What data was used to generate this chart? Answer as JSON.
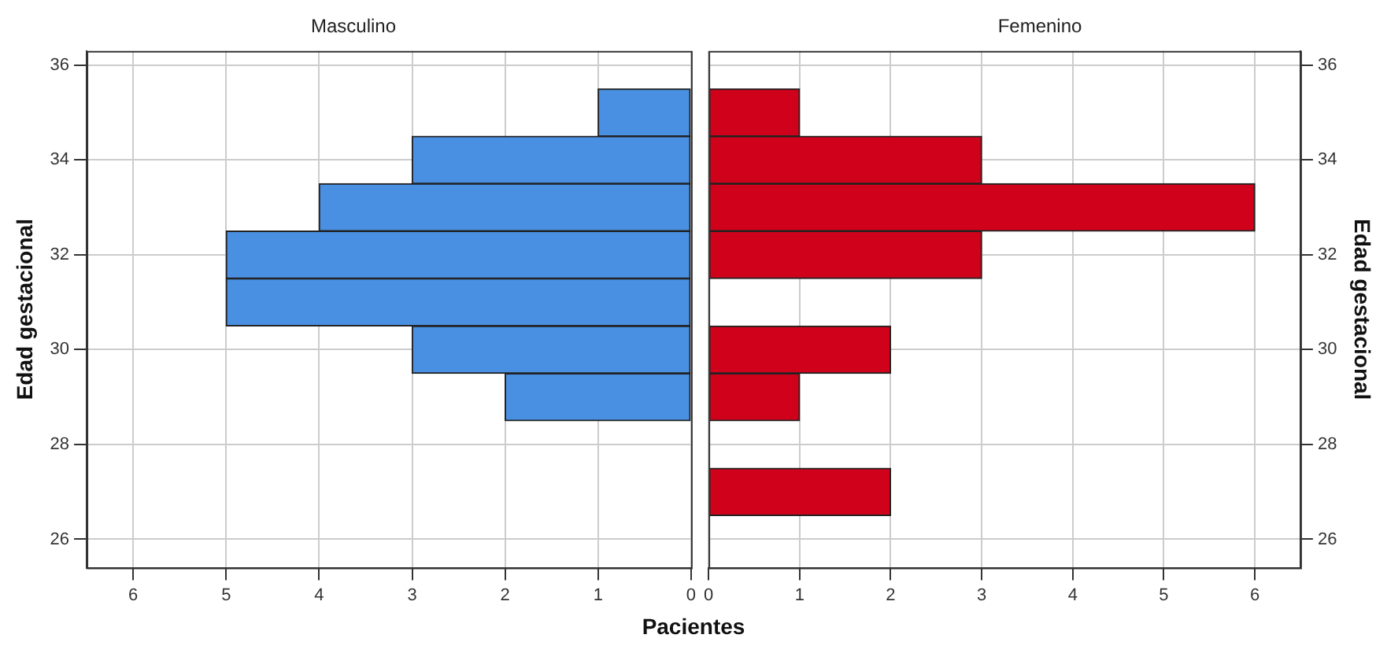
{
  "chart_data": [
    {
      "type": "histogram",
      "orientation": "horizontal",
      "title": "Masculino",
      "ylabel": "Edad gestacional",
      "bins": [
        26.5,
        27.5,
        28.5,
        29.5,
        30.5,
        31.5,
        32.5,
        33.5,
        34.5,
        35.5
      ],
      "values": [
        0,
        0,
        2,
        3,
        5,
        5,
        4,
        3,
        1
      ],
      "color": "#4a90e2",
      "xlim": [
        6.5,
        0
      ],
      "xticks": [
        6,
        5,
        4,
        3,
        2,
        1,
        0
      ],
      "ylim": [
        25.4,
        36.3
      ],
      "yticks": [
        26,
        28,
        30,
        32,
        34,
        36
      ],
      "grid": true
    },
    {
      "type": "histogram",
      "orientation": "horizontal",
      "title": "Femenino",
      "xlabel": "Pacientes",
      "y2label": "Edad gestacional",
      "bins": [
        26.5,
        27.5,
        28.5,
        29.5,
        30.5,
        31.5,
        32.5,
        33.5,
        34.5,
        35.5
      ],
      "values": [
        2,
        0,
        1,
        2,
        0,
        3,
        6,
        3,
        1
      ],
      "color": "#d0021b",
      "xlim": [
        0,
        6.5
      ],
      "xticks": [
        0,
        1,
        2,
        3,
        4,
        5,
        6
      ],
      "ylim": [
        25.4,
        36.3
      ],
      "yticks": [
        26,
        28,
        30,
        32,
        34,
        36
      ],
      "grid": true
    }
  ]
}
